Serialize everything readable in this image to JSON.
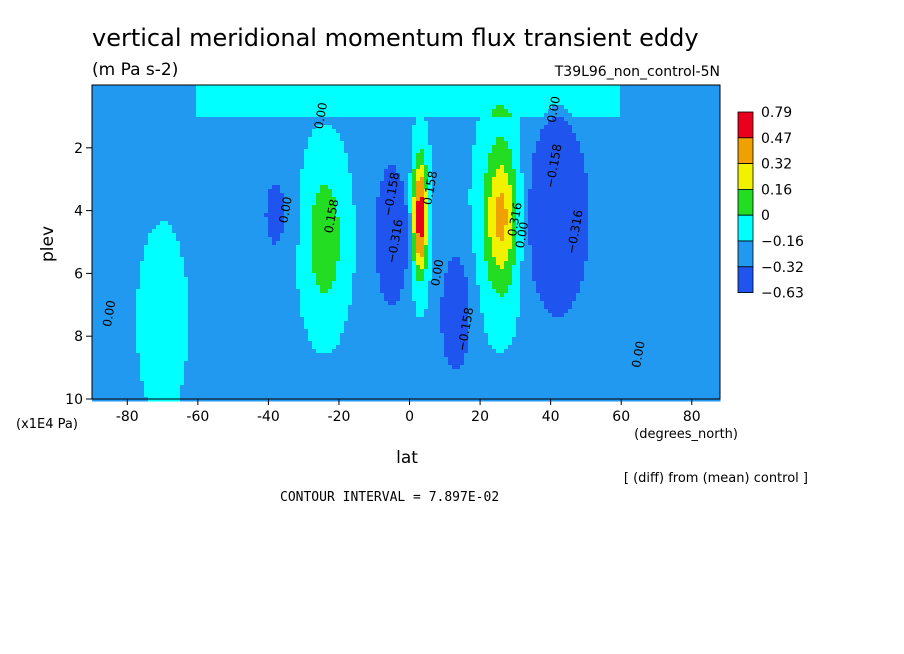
{
  "chart_data": {
    "type": "heatmap",
    "title": "vertical meridional momentum flux transient eddy",
    "units": "(m Pa s-2)",
    "run_label": "T39L96_non_control-5N",
    "xlabel": "lat",
    "xunits": "(degrees_north)",
    "ylabel": "plev",
    "yunits": "(x1E4 Pa)",
    "xlim": [
      -90,
      88
    ],
    "ylim": [
      10,
      0
    ],
    "x_ticks": [
      -80,
      -60,
      -40,
      -20,
      0,
      20,
      40,
      60,
      80
    ],
    "y_ticks": [
      2,
      4,
      6,
      8,
      10
    ],
    "diff_note": "[ (diff) from (mean) control ]",
    "contour_interval": "CONTOUR INTERVAL = 7.897E-02",
    "colorbar": {
      "labels": [
        "0.79",
        "0.47",
        "0.32",
        "0.16",
        "0",
        "−0.16",
        "−0.32",
        "−0.63"
      ],
      "colors": [
        "#e8001c",
        "#f0a000",
        "#f2f200",
        "#22dd22",
        "#00ffff",
        "#2299f0",
        "#1f55ee"
      ]
    },
    "contour_labels": [
      {
        "text": "0.00",
        "lat": -34,
        "plev": 4.0
      },
      {
        "text": "0.158",
        "lat": -21,
        "plev": 4.2
      },
      {
        "text": "0.00",
        "lat": -84,
        "plev": 7.3
      },
      {
        "text": "0.00",
        "lat": -24,
        "plev": 1.0
      },
      {
        "text": "0.00",
        "lat": 42,
        "plev": 0.8
      },
      {
        "text": "−0.158",
        "lat": -4,
        "plev": 3.5
      },
      {
        "text": "−0.316",
        "lat": -3,
        "plev": 5.0
      },
      {
        "text": "0.158",
        "lat": 7,
        "plev": 3.3
      },
      {
        "text": "0.00",
        "lat": 9,
        "plev": 6.0
      },
      {
        "text": "−0.158",
        "lat": 17,
        "plev": 7.8
      },
      {
        "text": "0.00",
        "lat": 33,
        "plev": 4.8
      },
      {
        "text": "0.316",
        "lat": 31,
        "plev": 4.3
      },
      {
        "text": "−0.158",
        "lat": 42,
        "plev": 2.6
      },
      {
        "text": "−0.316",
        "lat": 48,
        "plev": 4.7
      },
      {
        "text": "0.00",
        "lat": 66,
        "plev": 8.6
      }
    ],
    "features": [
      {
        "lat": -24,
        "plev": 4.9,
        "slat": 5.2,
        "splev": 2.2,
        "value": 0.33
      },
      {
        "lat": -38,
        "plev": 4.1,
        "slat": 4.5,
        "splev": 1.6,
        "value": -0.2
      },
      {
        "lat": -5,
        "plev": 4.8,
        "slat": 4.2,
        "splev": 2.0,
        "value": -0.48
      },
      {
        "lat": 3,
        "plev": 4.2,
        "slat": 2.0,
        "splev": 1.7,
        "value": 0.9
      },
      {
        "lat": 13,
        "plev": 7.3,
        "slat": 4.0,
        "splev": 1.8,
        "value": -0.38
      },
      {
        "lat": 26,
        "plev": 4.2,
        "slat": 5.0,
        "splev": 2.4,
        "value": 0.55
      },
      {
        "lat": 42,
        "plev": 4.2,
        "slat": 8.0,
        "splev": 2.8,
        "value": -0.5
      },
      {
        "lat": -70,
        "plev": 7.5,
        "slat": 7.0,
        "splev": 3.0,
        "value": 0.06
      }
    ]
  }
}
